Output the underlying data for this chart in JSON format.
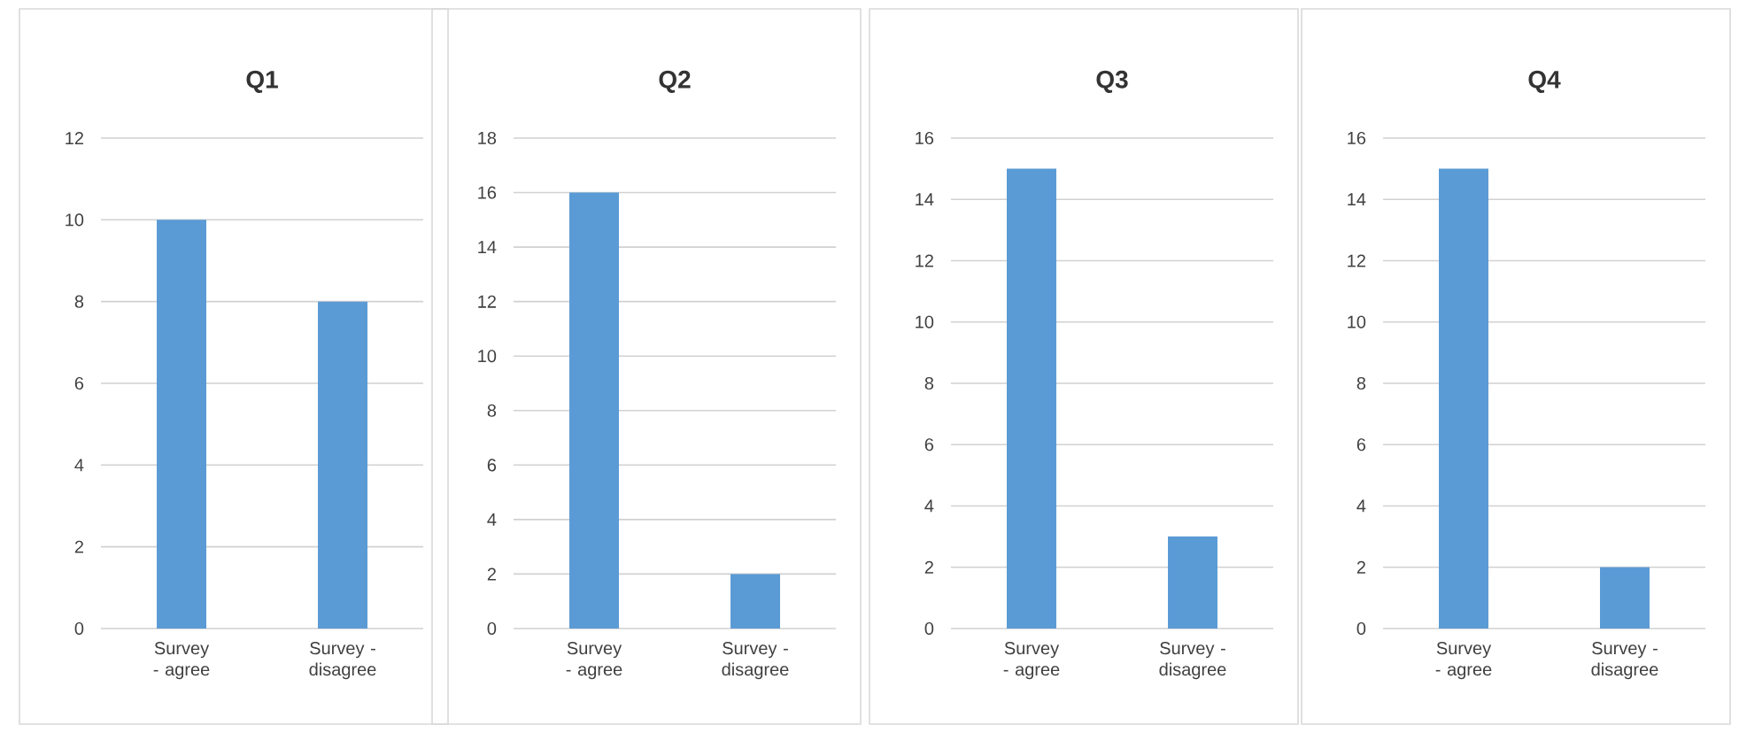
{
  "chart_data": [
    {
      "type": "bar",
      "title": "Q1",
      "categories": [
        "Survey - agree",
        "Survey - disagree"
      ],
      "values": [
        10,
        8
      ],
      "color": "#5b9bd5",
      "ylim": [
        0,
        12
      ],
      "yticks": [
        0,
        2,
        4,
        6,
        8,
        10,
        12
      ],
      "grid": "y"
    },
    {
      "type": "bar",
      "title": "Q2",
      "categories": [
        "Survey - agree",
        "Survey - disagree"
      ],
      "values": [
        16,
        2
      ],
      "color": "#5b9bd5",
      "ylim": [
        0,
        18
      ],
      "yticks": [
        0,
        2,
        4,
        6,
        8,
        10,
        12,
        14,
        16,
        18
      ],
      "grid": "y"
    },
    {
      "type": "bar",
      "title": "Q3",
      "categories": [
        "Survey - agree",
        "Survey - disagree"
      ],
      "values": [
        15,
        3
      ],
      "color": "#5b9bd5",
      "ylim": [
        0,
        16
      ],
      "yticks": [
        0,
        2,
        4,
        6,
        8,
        10,
        12,
        14,
        16
      ],
      "grid": "y"
    },
    {
      "type": "bar",
      "title": "Q4",
      "categories": [
        "Survey - agree",
        "Survey - disagree"
      ],
      "values": [
        15,
        2
      ],
      "color": "#5b9bd5",
      "ylim": [
        0,
        16
      ],
      "yticks": [
        0,
        2,
        4,
        6,
        8,
        10,
        12,
        14,
        16
      ],
      "grid": "y"
    }
  ]
}
